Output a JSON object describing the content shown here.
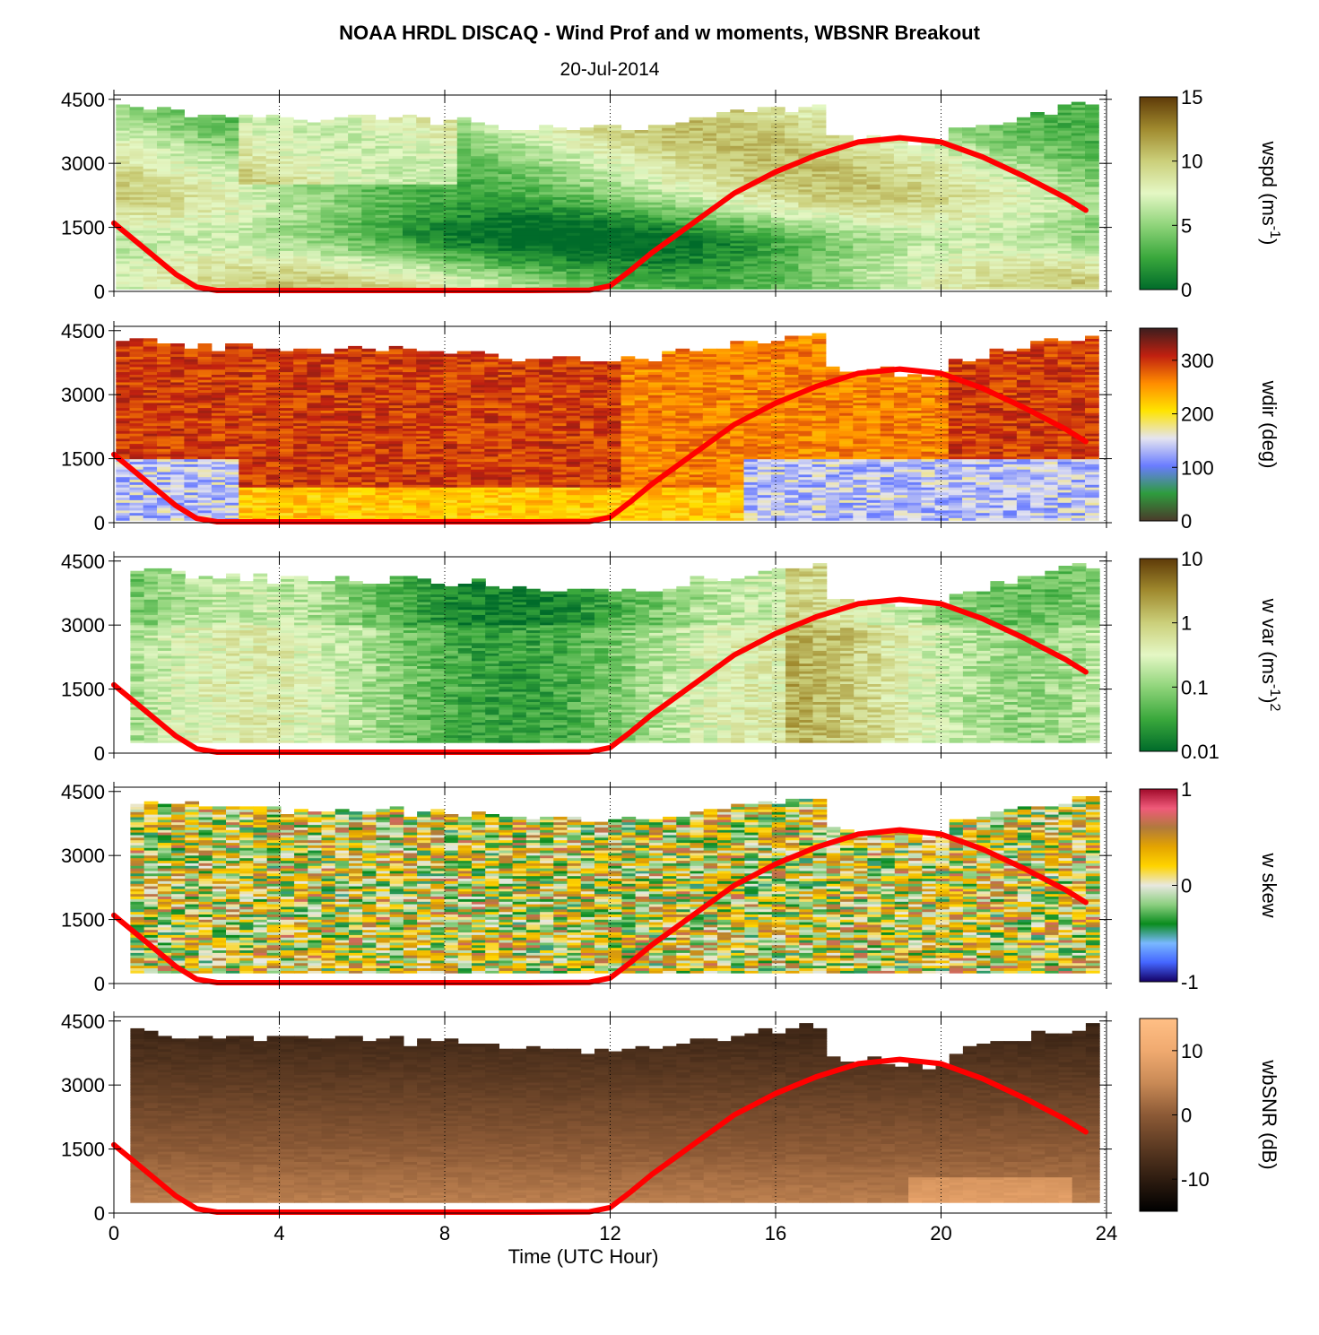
{
  "title": "NOAA HRDL DISCAQ - Wind Prof and w moments, WBSNR Breakout",
  "subtitle": "20-Jul-2014",
  "chart_data": {
    "type": "heatmap",
    "xlabel": "Time (UTC Hour)",
    "xlim": [
      0,
      24
    ],
    "xticks": [
      "0",
      "4",
      "8",
      "12",
      "16",
      "20",
      "24"
    ],
    "ylim": [
      0,
      4600
    ],
    "yticks": [
      "0",
      "1500",
      "3000",
      "4500"
    ],
    "grid": "dotted vertical lines at 4, 8, 12, 16, 20 h",
    "overlay_line": {
      "color": "#ff0000",
      "x": [
        0,
        0.5,
        1,
        1.5,
        2,
        2.5,
        3,
        4,
        6,
        8,
        10,
        11.5,
        12,
        12.5,
        13,
        14,
        15,
        16,
        17,
        18,
        19,
        20,
        21,
        22,
        23,
        23.5
      ],
      "y": [
        1600,
        1200,
        800,
        400,
        100,
        20,
        20,
        20,
        20,
        20,
        20,
        30,
        130,
        500,
        900,
        1600,
        2300,
        2800,
        3200,
        3500,
        3600,
        3500,
        3150,
        2700,
        2200,
        1900
      ]
    },
    "panels": [
      {
        "name": "wspd",
        "clabel": "wspd (ms^-1)",
        "clabel_main": "wspd (ms",
        "clabel_sup": "-1",
        "clabel_end": ")",
        "cticks": [
          "0",
          "5",
          "10",
          "15"
        ],
        "colors": [
          "#006b2a",
          "#3aa83c",
          "#8fd47a",
          "#e4f7c4",
          "#cbcf7a",
          "#a08a2e",
          "#5e3a08"
        ]
      },
      {
        "name": "wdir",
        "clabel": "wdir (deg)",
        "clabel_main": "wdir (deg)",
        "clabel_sup": "",
        "clabel_end": "",
        "cticks": [
          "0",
          "100",
          "200",
          "300"
        ],
        "colors": [
          "#4a3a2a",
          "#2e9c3e",
          "#6a7cff",
          "#e4e4f0",
          "#ffe400",
          "#ff8c00",
          "#c02010",
          "#3c1e1e"
        ]
      },
      {
        "name": "wvar",
        "clabel": "w var (ms^-1)^2",
        "clabel_main": "w var (ms",
        "clabel_sup": "-1",
        "clabel_end": ")",
        "clabel_sup2": "2",
        "cticks": [
          "0.01",
          "0.1",
          "1",
          "10"
        ],
        "colors": [
          "#006b2a",
          "#3aa83c",
          "#8fd47a",
          "#e4f7c4",
          "#cbcf7a",
          "#a08a2e",
          "#5e3a08"
        ]
      },
      {
        "name": "wskew",
        "clabel": "w skew",
        "clabel_main": "w skew",
        "clabel_sup": "",
        "clabel_end": "",
        "cticks": [
          "-1",
          "0",
          "1"
        ],
        "colors": [
          "#140064",
          "#4466ff",
          "#79b8ff",
          "#0a8c1e",
          "#8ccf80",
          "#e8e8e0",
          "#ffd400",
          "#e4a400",
          "#b07a3c",
          "#f05a7a",
          "#a00a2a"
        ]
      },
      {
        "name": "wbsnr",
        "clabel": "wbSNR (dB)",
        "clabel_main": "wbSNR (dB)",
        "clabel_sup": "",
        "clabel_end": "",
        "cticks": [
          "-10",
          "0",
          "10"
        ],
        "colors": [
          "#000000",
          "#2e1c10",
          "#5c3a22",
          "#8c5a36",
          "#c98a56",
          "#f0aa70",
          "#ffbf85"
        ]
      }
    ]
  }
}
